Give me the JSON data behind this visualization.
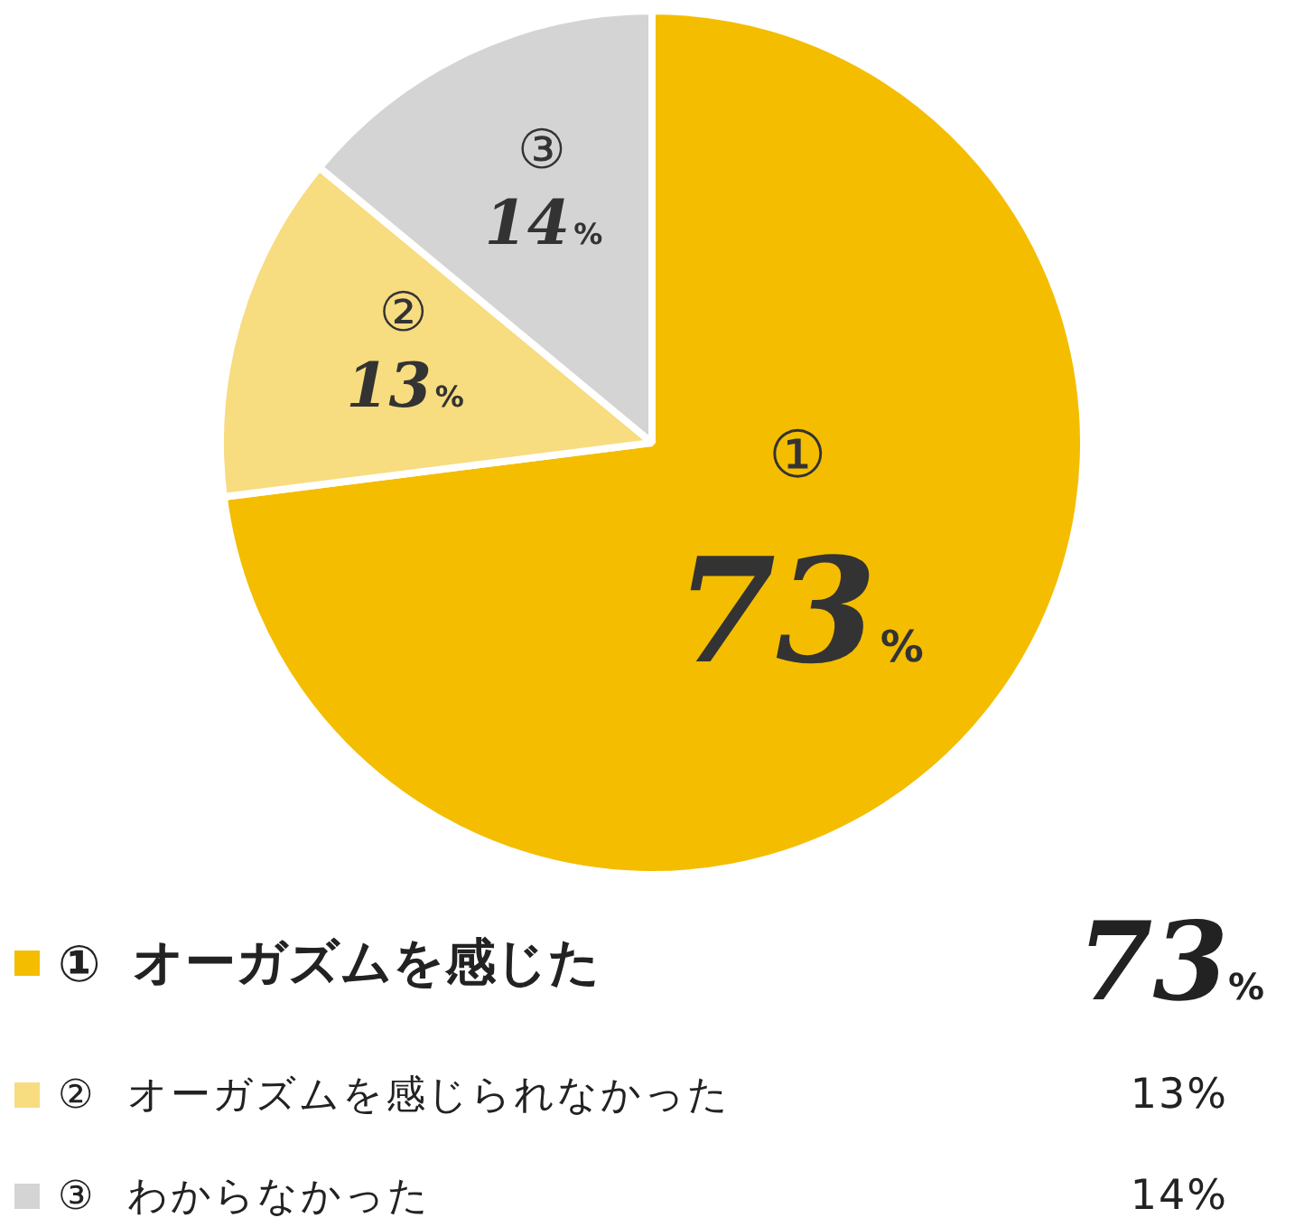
{
  "chart_data": {
    "type": "pie",
    "categories": [
      "① オーガズムを感じた",
      "② オーガズムを感じられなかった",
      "③ わからなかった"
    ],
    "values": [
      73,
      13,
      14
    ],
    "value_labels": [
      "73%",
      "13%",
      "14%"
    ],
    "annotations": [
      "①",
      "②",
      "③"
    ],
    "colors": [
      "#f4bd00",
      "#f7dc80",
      "#d4d4d4"
    ],
    "data_labels": true,
    "legend": "bottom"
  }
}
